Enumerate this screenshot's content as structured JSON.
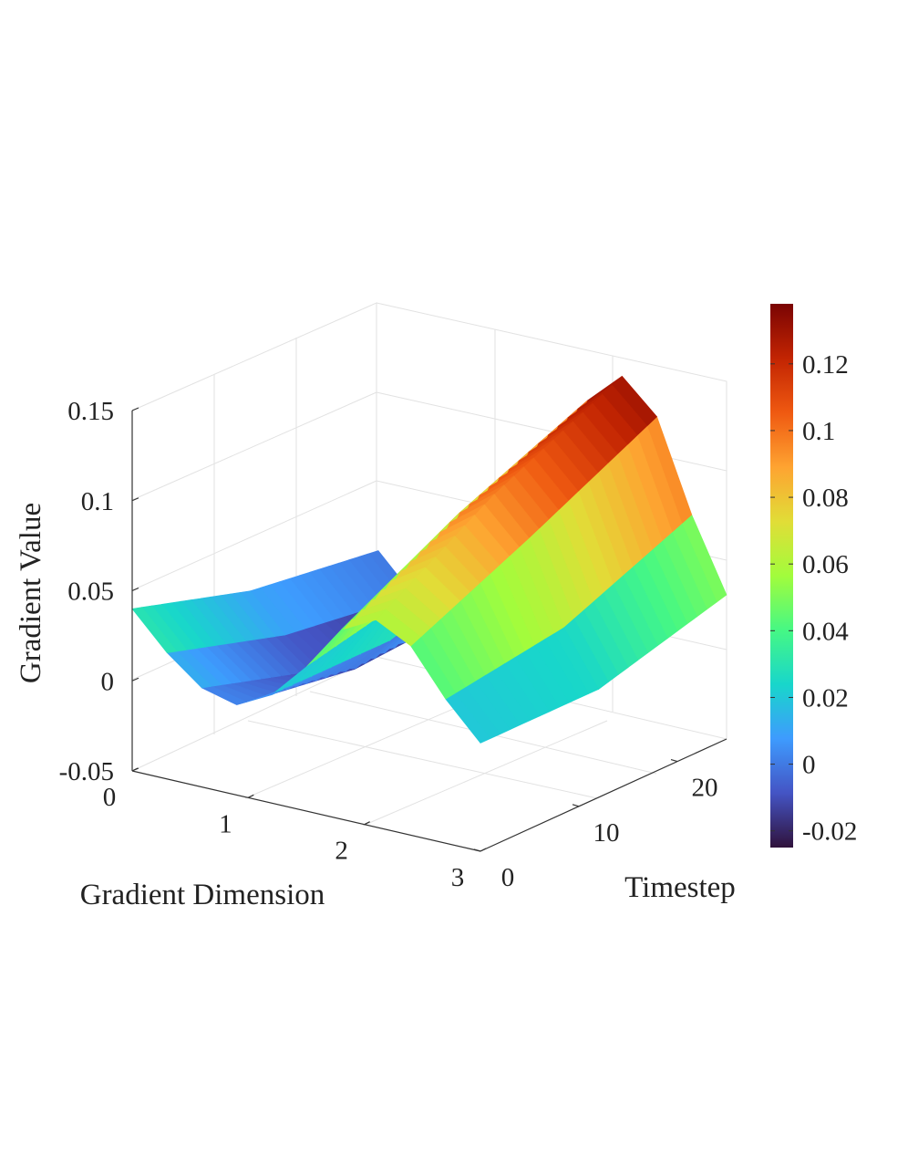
{
  "chart_data": {
    "type": "surface3d",
    "colormap": "turbo",
    "zlabel": "Gradient Value",
    "xlabel": "Gradient Dimension",
    "ylabel": "Timestep",
    "xlim": [
      0,
      3
    ],
    "ylim": [
      0,
      25
    ],
    "zlim": [
      -0.05,
      0.15
    ],
    "clim": [
      -0.025,
      0.138
    ],
    "grid": true,
    "colorbar": "right",
    "x_ticks": [
      "0",
      "1",
      "2",
      "3"
    ],
    "y_ticks": [
      "0",
      "10",
      "20"
    ],
    "z_ticks": [
      "-0.05",
      "0",
      "0.05",
      "0.1",
      "0.15"
    ],
    "colorbar_ticks": [
      "-0.02",
      "0",
      "0.02",
      "0.04",
      "0.06",
      "0.08",
      "0.1",
      "0.12"
    ],
    "slices": [
      {
        "timestep": 0,
        "x": [
          0,
          0.3,
          0.6,
          0.9,
          1.2,
          1.5,
          1.8,
          2.1,
          2.4,
          2.7,
          3.0
        ],
        "z": [
          0.04,
          0.02,
          0.005,
          0.0,
          0.01,
          0.03,
          0.055,
          0.065,
          0.055,
          0.03,
          0.01
        ]
      },
      {
        "timestep": 12,
        "x": [
          0,
          0.3,
          0.6,
          0.9,
          1.2,
          1.5,
          1.8,
          2.1,
          2.4,
          2.7,
          3.0
        ],
        "z": [
          0.02,
          0.0,
          -0.015,
          -0.01,
          0.01,
          0.045,
          0.09,
          0.105,
          0.085,
          0.04,
          0.01
        ]
      },
      {
        "timestep": 25,
        "x": [
          0,
          0.3,
          0.6,
          0.9,
          1.2,
          1.5,
          1.8,
          2.1,
          2.4,
          2.7,
          3.0
        ],
        "z": [
          0.01,
          -0.01,
          -0.02,
          -0.005,
          0.03,
          0.08,
          0.12,
          0.138,
          0.12,
          0.07,
          0.03
        ]
      }
    ]
  }
}
